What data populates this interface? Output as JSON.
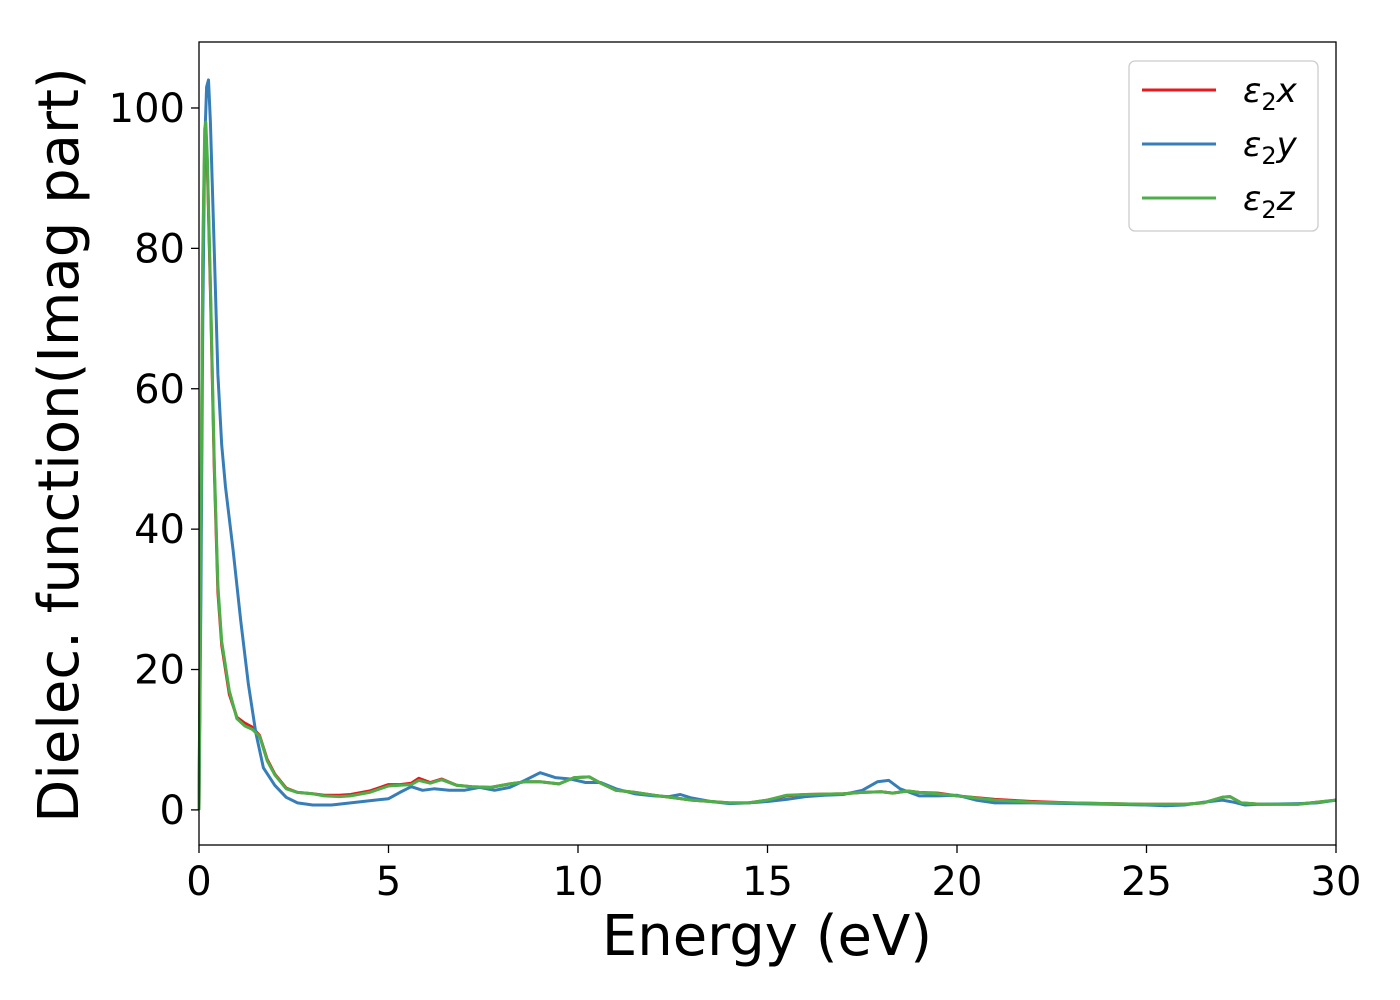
{
  "chart_data": {
    "type": "line",
    "title": "",
    "xlabel": "Energy (eV)",
    "ylabel": "Dielec. function(Imag part)",
    "xlim": [
      0,
      30
    ],
    "ylim": [
      -5,
      109.4
    ],
    "xticks": [
      0,
      5,
      10,
      15,
      20,
      25,
      30
    ],
    "yticks": [
      0,
      20,
      40,
      60,
      80,
      100
    ],
    "grid": false,
    "legend_position": "top-right",
    "series": [
      {
        "name": "ε2x",
        "sub": "2",
        "base": "ε",
        "axis": "x",
        "color": "#e41a1c",
        "x": [
          0,
          0.05,
          0.1,
          0.15,
          0.18,
          0.22,
          0.3,
          0.4,
          0.5,
          0.6,
          0.8,
          1.0,
          1.2,
          1.4,
          1.6,
          1.8,
          2.0,
          2.3,
          2.6,
          3,
          3.3,
          3.7,
          4,
          4.5,
          5,
          5.3,
          5.6,
          5.8,
          6.1,
          6.4,
          6.8,
          7.2,
          7.7,
          8.2,
          8.6,
          9,
          9.5,
          9.9,
          10.3,
          10.6,
          11,
          11.5,
          12,
          13,
          14,
          14.5,
          15,
          15.5,
          16,
          17,
          17.5,
          18,
          18.3,
          18.7,
          19,
          19.5,
          20,
          21,
          22,
          23,
          24,
          25,
          26,
          26.5,
          27,
          27.2,
          27.5,
          28,
          29,
          30
        ],
        "y": [
          0,
          38,
          78,
          95,
          96.5,
          92,
          74,
          49,
          31,
          23.5,
          16.5,
          13.2,
          12.4,
          11.8,
          10.6,
          7.2,
          5.1,
          3.1,
          2.5,
          2.3,
          2.1,
          2.1,
          2.2,
          2.7,
          3.6,
          3.6,
          3.8,
          4.5,
          3.9,
          4.4,
          3.5,
          3.3,
          3.2,
          3.7,
          4.0,
          4.0,
          3.7,
          4.6,
          4.7,
          3.8,
          2.8,
          2.5,
          2.1,
          1.4,
          1.0,
          1.0,
          1.4,
          2.0,
          2.2,
          2.3,
          2.5,
          2.6,
          2.4,
          2.7,
          2.5,
          2.4,
          2.0,
          1.5,
          1.2,
          1.0,
          0.9,
          0.8,
          0.8,
          1.0,
          1.8,
          1.9,
          1.0,
          0.8,
          0.8,
          1.4
        ]
      },
      {
        "name": "ε2y",
        "sub": "2",
        "base": "ε",
        "axis": "y",
        "color": "#377eb8",
        "x": [
          0,
          0.05,
          0.1,
          0.15,
          0.2,
          0.25,
          0.3,
          0.4,
          0.5,
          0.6,
          0.7,
          0.9,
          1.1,
          1.3,
          1.5,
          1.7,
          2.0,
          2.3,
          2.6,
          3,
          3.5,
          4,
          4.5,
          5,
          5.3,
          5.6,
          5.9,
          6.2,
          6.6,
          7,
          7.4,
          7.8,
          8.2,
          8.6,
          9,
          9.4,
          9.8,
          10.2,
          10.6,
          11,
          11.5,
          12,
          12.4,
          12.7,
          13,
          13.5,
          14,
          14.5,
          15,
          15.5,
          16,
          16.5,
          17,
          17.5,
          17.9,
          18.2,
          18.5,
          19,
          19.5,
          20,
          20.5,
          21,
          22,
          23,
          24,
          25,
          25.5,
          26,
          26.5,
          27,
          27.3,
          27.6,
          28,
          29,
          29.5,
          30
        ],
        "y": [
          0,
          30,
          70,
          95,
          103,
          104,
          98,
          80,
          62,
          52,
          46,
          37,
          27,
          18,
          11,
          6,
          3.5,
          1.8,
          1.0,
          0.7,
          0.7,
          1.0,
          1.3,
          1.6,
          2.5,
          3.3,
          2.8,
          3.0,
          2.8,
          2.8,
          3.2,
          2.8,
          3.2,
          4.2,
          5.3,
          4.6,
          4.4,
          3.9,
          3.9,
          3.0,
          2.3,
          2.0,
          1.9,
          2.2,
          1.7,
          1.2,
          0.9,
          1.0,
          1.2,
          1.5,
          1.9,
          2.1,
          2.2,
          2.8,
          4.0,
          4.2,
          3.0,
          2.0,
          2.0,
          2.1,
          1.4,
          1.0,
          1.0,
          0.9,
          0.8,
          0.7,
          0.6,
          0.7,
          1.1,
          1.4,
          1.1,
          0.7,
          0.8,
          0.9,
          1.0,
          1.4
        ]
      },
      {
        "name": "ε2z",
        "sub": "2",
        "base": "ε",
        "axis": "z",
        "color": "#4daf4a",
        "x": [
          0,
          0.05,
          0.1,
          0.15,
          0.18,
          0.22,
          0.3,
          0.4,
          0.5,
          0.6,
          0.8,
          1.0,
          1.2,
          1.4,
          1.6,
          1.8,
          2.0,
          2.3,
          2.6,
          3,
          3.3,
          3.7,
          4,
          4.5,
          5,
          5.3,
          5.6,
          5.8,
          6.1,
          6.4,
          6.8,
          7.2,
          7.7,
          8.2,
          8.6,
          9,
          9.5,
          9.9,
          10.3,
          10.6,
          11,
          11.5,
          12,
          13,
          14,
          14.5,
          15,
          15.5,
          16,
          17,
          17.5,
          18,
          18.3,
          18.7,
          19,
          19.5,
          20,
          21,
          22,
          23,
          24,
          25,
          26,
          26.5,
          27,
          27.2,
          27.5,
          28,
          29,
          30
        ],
        "y": [
          0,
          40,
          80,
          97,
          98,
          93,
          75,
          50,
          32,
          24,
          17,
          13,
          12,
          11.5,
          10.5,
          7,
          5,
          3,
          2.5,
          2.3,
          2.0,
          1.9,
          2.0,
          2.5,
          3.4,
          3.5,
          3.6,
          4.2,
          3.8,
          4.3,
          3.5,
          3.3,
          3.2,
          3.7,
          4.0,
          4.0,
          3.7,
          4.6,
          4.7,
          3.8,
          2.8,
          2.5,
          2.1,
          1.4,
          1.0,
          1.0,
          1.4,
          2.1,
          2.2,
          2.3,
          2.5,
          2.6,
          2.4,
          2.7,
          2.5,
          2.3,
          2.0,
          1.4,
          1.1,
          1.0,
          0.9,
          0.8,
          0.8,
          1.0,
          1.8,
          1.9,
          1.0,
          0.8,
          0.8,
          1.4
        ]
      }
    ]
  }
}
